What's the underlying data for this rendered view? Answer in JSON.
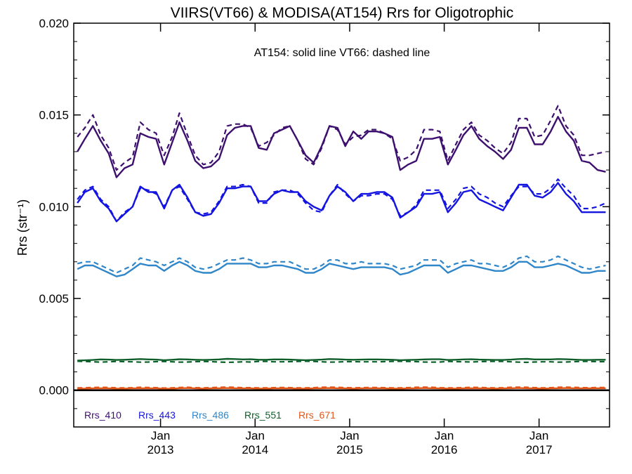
{
  "chart_data": {
    "type": "line",
    "title": "VIIRS(VT66) & MODISA(AT154)  Rrs for Oligotrophic",
    "annotation": "AT154: solid line   VT66: dashed line",
    "ylabel": "Rrs (str⁻¹)",
    "xlabel": "",
    "ylim": [
      -0.002,
      0.02
    ],
    "xlim": [
      "2012-02-01",
      "2017-09-30"
    ],
    "y_ticks": [
      "0.000",
      "0.005",
      "0.010",
      "0.015",
      "0.020"
    ],
    "y_tick_values": [
      0,
      0.005,
      0.01,
      0.015,
      0.02
    ],
    "x_ticks": [
      {
        "date": "2013-01-01",
        "month": "Jan",
        "year": "2013"
      },
      {
        "date": "2014-01-01",
        "month": "Jan",
        "year": "2014"
      },
      {
        "date": "2015-01-01",
        "month": "Jan",
        "year": "2015"
      },
      {
        "date": "2016-01-01",
        "month": "Jan",
        "year": "2016"
      },
      {
        "date": "2017-01-01",
        "month": "Jan",
        "year": "2017"
      }
    ],
    "grid": false,
    "legend_position": "bottom-left",
    "zero_line": true,
    "x": [
      "2012-02",
      "2012-03",
      "2012-04",
      "2012-05",
      "2012-06",
      "2012-07",
      "2012-08",
      "2012-09",
      "2012-10",
      "2012-11",
      "2012-12",
      "2013-01",
      "2013-02",
      "2013-03",
      "2013-04",
      "2013-05",
      "2013-06",
      "2013-07",
      "2013-08",
      "2013-09",
      "2013-10",
      "2013-11",
      "2013-12",
      "2014-01",
      "2014-02",
      "2014-03",
      "2014-04",
      "2014-05",
      "2014-06",
      "2014-07",
      "2014-08",
      "2014-09",
      "2014-10",
      "2014-11",
      "2014-12",
      "2015-01",
      "2015-02",
      "2015-03",
      "2015-04",
      "2015-05",
      "2015-06",
      "2015-07",
      "2015-08",
      "2015-09",
      "2015-10",
      "2015-11",
      "2015-12",
      "2016-01",
      "2016-02",
      "2016-03",
      "2016-04",
      "2016-05",
      "2016-06",
      "2016-07",
      "2016-08",
      "2016-09",
      "2016-10",
      "2016-11",
      "2016-12",
      "2017-01",
      "2017-02",
      "2017-03",
      "2017-04",
      "2017-05",
      "2017-06",
      "2017-07",
      "2017-08",
      "2017-09"
    ],
    "series": [
      {
        "name": "Rrs_410",
        "color": "#3d0f6e",
        "solid": [
          0.013,
          0.0137,
          0.0144,
          0.0136,
          0.0129,
          0.0116,
          0.0121,
          0.0123,
          0.014,
          0.0138,
          0.0137,
          0.0123,
          0.0135,
          0.0146,
          0.0136,
          0.0125,
          0.0121,
          0.0122,
          0.0126,
          0.0139,
          0.0143,
          0.0144,
          0.0144,
          0.0132,
          0.0131,
          0.014,
          0.0142,
          0.0144,
          0.0136,
          0.0128,
          0.0124,
          0.0133,
          0.0144,
          0.0143,
          0.0133,
          0.0141,
          0.0137,
          0.0141,
          0.0141,
          0.014,
          0.0138,
          0.012,
          0.0123,
          0.0125,
          0.0137,
          0.0137,
          0.0138,
          0.0123,
          0.0131,
          0.0139,
          0.0144,
          0.0137,
          0.0133,
          0.013,
          0.0126,
          0.0131,
          0.0143,
          0.0143,
          0.0134,
          0.0134,
          0.0141,
          0.0149,
          0.0141,
          0.0136,
          0.0125,
          0.0124,
          0.012,
          0.0119
        ],
        "dashed": [
          0.0138,
          0.0143,
          0.015,
          0.0139,
          0.0132,
          0.012,
          0.0124,
          0.0127,
          0.0146,
          0.0142,
          0.014,
          0.0128,
          0.0138,
          0.0151,
          0.0139,
          0.0128,
          0.0123,
          0.0124,
          0.013,
          0.0144,
          0.0145,
          0.0145,
          0.0143,
          0.0133,
          0.0135,
          0.0139,
          0.0143,
          0.0144,
          0.0136,
          0.0126,
          0.0123,
          0.0132,
          0.0144,
          0.0142,
          0.0134,
          0.0138,
          0.0139,
          0.0142,
          0.0142,
          0.014,
          0.0137,
          0.0125,
          0.0127,
          0.0131,
          0.0142,
          0.0142,
          0.0141,
          0.0125,
          0.0134,
          0.0142,
          0.0146,
          0.0139,
          0.0136,
          0.0132,
          0.0129,
          0.0135,
          0.0148,
          0.0148,
          0.0138,
          0.0139,
          0.0147,
          0.0155,
          0.0144,
          0.0139,
          0.0128,
          0.0128,
          0.0129,
          0.013
        ]
      },
      {
        "name": "Rrs_443",
        "color": "#1414e0",
        "solid": [
          0.0102,
          0.0108,
          0.011,
          0.0103,
          0.0099,
          0.0092,
          0.0096,
          0.01,
          0.0111,
          0.0108,
          0.0108,
          0.0099,
          0.0109,
          0.0112,
          0.0105,
          0.0097,
          0.0095,
          0.0096,
          0.0102,
          0.011,
          0.011,
          0.0111,
          0.0111,
          0.0103,
          0.0103,
          0.0107,
          0.0109,
          0.0108,
          0.0108,
          0.0103,
          0.01,
          0.0098,
          0.0106,
          0.0111,
          0.0108,
          0.0103,
          0.0107,
          0.0107,
          0.0108,
          0.0108,
          0.0105,
          0.0094,
          0.0097,
          0.01,
          0.0107,
          0.0107,
          0.0108,
          0.0097,
          0.0102,
          0.0108,
          0.0109,
          0.0104,
          0.0102,
          0.01,
          0.0098,
          0.0105,
          0.0112,
          0.0112,
          0.0106,
          0.0105,
          0.0108,
          0.0113,
          0.0107,
          0.0103,
          0.0097,
          0.0097,
          0.0097,
          0.0097
        ],
        "dashed": [
          0.0104,
          0.0109,
          0.0111,
          0.0104,
          0.01,
          0.0092,
          0.0097,
          0.01,
          0.011,
          0.0109,
          0.0107,
          0.01,
          0.0109,
          0.0111,
          0.0104,
          0.0097,
          0.0096,
          0.0097,
          0.0103,
          0.0111,
          0.0111,
          0.0112,
          0.0111,
          0.0102,
          0.0102,
          0.0108,
          0.0109,
          0.0109,
          0.0107,
          0.0102,
          0.0098,
          0.0097,
          0.0106,
          0.0112,
          0.0107,
          0.0103,
          0.0106,
          0.0106,
          0.0107,
          0.0107,
          0.0104,
          0.0095,
          0.0097,
          0.0101,
          0.0109,
          0.0109,
          0.0109,
          0.0099,
          0.0104,
          0.011,
          0.0111,
          0.0107,
          0.0105,
          0.0102,
          0.01,
          0.0106,
          0.0111,
          0.0111,
          0.0107,
          0.0107,
          0.011,
          0.0115,
          0.011,
          0.0106,
          0.0099,
          0.0099,
          0.01,
          0.0102
        ]
      },
      {
        "name": "Rrs_486",
        "color": "#2f86c9",
        "solid": [
          0.0066,
          0.0068,
          0.0068,
          0.0066,
          0.0064,
          0.0062,
          0.0063,
          0.0066,
          0.0069,
          0.0068,
          0.0068,
          0.0065,
          0.0068,
          0.007,
          0.0068,
          0.0065,
          0.0064,
          0.0064,
          0.0066,
          0.0069,
          0.0069,
          0.0069,
          0.0069,
          0.0067,
          0.0067,
          0.0068,
          0.0068,
          0.0067,
          0.0066,
          0.0064,
          0.0064,
          0.0066,
          0.0069,
          0.0068,
          0.0067,
          0.0066,
          0.0067,
          0.0067,
          0.0067,
          0.0067,
          0.0066,
          0.0063,
          0.0064,
          0.0066,
          0.0068,
          0.0068,
          0.0068,
          0.0064,
          0.0066,
          0.0068,
          0.0068,
          0.0067,
          0.0066,
          0.0065,
          0.0065,
          0.0067,
          0.007,
          0.007,
          0.0067,
          0.0067,
          0.0068,
          0.0069,
          0.0068,
          0.0066,
          0.0064,
          0.0064,
          0.0065,
          0.0065
        ],
        "dashed": [
          0.0069,
          0.007,
          0.007,
          0.0068,
          0.0066,
          0.0064,
          0.0066,
          0.0068,
          0.0072,
          0.0071,
          0.007,
          0.0068,
          0.007,
          0.0072,
          0.007,
          0.0067,
          0.0066,
          0.0067,
          0.0069,
          0.0071,
          0.0071,
          0.0072,
          0.0071,
          0.0069,
          0.0069,
          0.007,
          0.007,
          0.007,
          0.0068,
          0.0066,
          0.0066,
          0.0068,
          0.0071,
          0.0071,
          0.0069,
          0.0069,
          0.007,
          0.0069,
          0.0069,
          0.0069,
          0.0068,
          0.0066,
          0.0067,
          0.0068,
          0.0071,
          0.0071,
          0.0071,
          0.0067,
          0.0069,
          0.007,
          0.0071,
          0.0069,
          0.0069,
          0.0068,
          0.0067,
          0.0069,
          0.0072,
          0.0073,
          0.007,
          0.007,
          0.0071,
          0.0073,
          0.0071,
          0.0069,
          0.0067,
          0.0066,
          0.0067,
          0.0068
        ]
      },
      {
        "name": "Rrs_551",
        "color": "#0e5e2a",
        "solid": [
          0.00162,
          0.00163,
          0.00165,
          0.00168,
          0.00167,
          0.00165,
          0.00166,
          0.00168,
          0.0017,
          0.00168,
          0.00167,
          0.00164,
          0.00166,
          0.00169,
          0.00168,
          0.00166,
          0.00165,
          0.00166,
          0.00168,
          0.00171,
          0.0017,
          0.00168,
          0.00169,
          0.00166,
          0.00166,
          0.00168,
          0.00168,
          0.00167,
          0.00165,
          0.00164,
          0.00165,
          0.00167,
          0.0017,
          0.00169,
          0.00167,
          0.00166,
          0.00167,
          0.00168,
          0.00168,
          0.00167,
          0.00166,
          0.00164,
          0.00165,
          0.00166,
          0.00168,
          0.00169,
          0.00169,
          0.00165,
          0.00166,
          0.00168,
          0.00169,
          0.00167,
          0.00166,
          0.00165,
          0.00165,
          0.00167,
          0.0017,
          0.00171,
          0.00168,
          0.00168,
          0.00168,
          0.0017,
          0.00169,
          0.00167,
          0.00165,
          0.00165,
          0.00166,
          0.00166
        ],
        "dashed": [
          0.00158,
          0.00157,
          0.00155,
          0.00153,
          0.00155,
          0.00157,
          0.00156,
          0.00155,
          0.00153,
          0.00154,
          0.00156,
          0.00157,
          0.00155,
          0.00153,
          0.00154,
          0.00156,
          0.00157,
          0.00156,
          0.00154,
          0.00152,
          0.00153,
          0.00155,
          0.00154,
          0.00157,
          0.00157,
          0.00155,
          0.00155,
          0.00156,
          0.00157,
          0.00158,
          0.00157,
          0.00155,
          0.00153,
          0.00154,
          0.00156,
          0.00156,
          0.00155,
          0.00155,
          0.00155,
          0.00156,
          0.00157,
          0.00158,
          0.00157,
          0.00156,
          0.00154,
          0.00153,
          0.00154,
          0.00157,
          0.00156,
          0.00155,
          0.00154,
          0.00156,
          0.00157,
          0.00157,
          0.00157,
          0.00155,
          0.00153,
          0.00152,
          0.00154,
          0.00155,
          0.00155,
          0.00153,
          0.00154,
          0.00156,
          0.00157,
          0.00157,
          0.00156,
          0.00156
        ]
      },
      {
        "name": "Rrs_671",
        "color": "#e0561a",
        "solid": [
          8e-05,
          9e-05,
          0.0001,
          0.00011,
          0.0001,
          9e-05,
          9e-05,
          0.0001,
          0.00011,
          0.0001,
          0.0001,
          8e-05,
          9e-05,
          0.00011,
          0.00012,
          0.0001,
          9e-05,
          0.0001,
          0.00011,
          0.00012,
          0.00011,
          0.0001,
          0.0001,
          9e-05,
          9e-05,
          0.0001,
          0.00011,
          0.0001,
          9e-05,
          9e-05,
          0.0001,
          0.00011,
          0.00012,
          0.00011,
          0.0001,
          9e-05,
          0.0001,
          0.00011,
          0.00011,
          0.0001,
          9e-05,
          9e-05,
          0.0001,
          0.00011,
          0.00012,
          0.00011,
          0.0001,
          9e-05,
          9e-05,
          0.0001,
          0.00011,
          0.0001,
          0.0001,
          9e-05,
          0.0001,
          0.00011,
          0.00012,
          0.00011,
          0.0001,
          9e-05,
          0.0001,
          0.00011,
          0.00012,
          0.00011,
          0.0001,
          0.0001,
          0.00011,
          0.00011
        ],
        "dashed": [
          0.00013,
          0.00014,
          0.00015,
          0.00016,
          0.00015,
          0.00013,
          0.00013,
          0.00014,
          0.00016,
          0.00015,
          0.00014,
          0.00012,
          0.00013,
          0.00015,
          0.00016,
          0.00014,
          0.00013,
          0.00014,
          0.00016,
          0.00017,
          0.00016,
          0.00014,
          0.00014,
          0.00013,
          0.00013,
          0.00014,
          0.00015,
          0.00014,
          0.00013,
          0.00013,
          0.00014,
          0.00016,
          0.00017,
          0.00016,
          0.00014,
          0.00013,
          0.00014,
          0.00015,
          0.00015,
          0.00014,
          0.00013,
          0.00013,
          0.00014,
          0.00016,
          0.00017,
          0.00016,
          0.00014,
          0.00013,
          0.00013,
          0.00014,
          0.00016,
          0.00015,
          0.00014,
          0.00013,
          0.00014,
          0.00016,
          0.00017,
          0.00016,
          0.00014,
          0.00013,
          0.00014,
          0.00016,
          0.00017,
          0.00016,
          0.00014,
          0.00014,
          0.00015,
          0.00015
        ]
      }
    ]
  }
}
